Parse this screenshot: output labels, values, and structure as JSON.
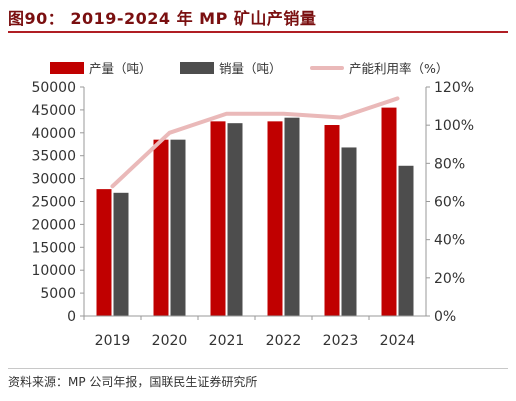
{
  "title": "图90：   2019-2024 年 MP 矿山产销量",
  "source": "资料来源：MP 公司年报，国联民生证券研究所",
  "colors": {
    "title": "#7a0f10",
    "rule": "#b01e24",
    "production": "#c00000",
    "sales": "#4d4d4d",
    "utilization": "#eab9b9"
  },
  "chart_data": {
    "type": "bar",
    "categories": [
      "2019",
      "2020",
      "2021",
      "2022",
      "2023",
      "2024"
    ],
    "series": [
      {
        "name": "产量（吨）",
        "kind": "bar",
        "axis": "left",
        "values": [
          27700,
          38500,
          42500,
          42500,
          41700,
          45500
        ]
      },
      {
        "name": "销量（吨）",
        "kind": "bar",
        "axis": "left",
        "values": [
          26900,
          38500,
          42100,
          43300,
          36800,
          32800
        ]
      },
      {
        "name": "产能利用率（%）",
        "kind": "line",
        "axis": "right",
        "values": [
          68,
          96,
          106,
          106,
          104,
          114
        ]
      }
    ],
    "y_left": {
      "min": 0,
      "max": 50000,
      "ticks": [
        "0",
        "5000",
        "10000",
        "15000",
        "20000",
        "25000",
        "30000",
        "35000",
        "40000",
        "45000",
        "50000"
      ]
    },
    "y_right": {
      "min": 0,
      "max": 120,
      "ticks": [
        "0%",
        "20%",
        "40%",
        "60%",
        "80%",
        "100%",
        "120%"
      ]
    },
    "grid": false,
    "legend_position": "top"
  }
}
